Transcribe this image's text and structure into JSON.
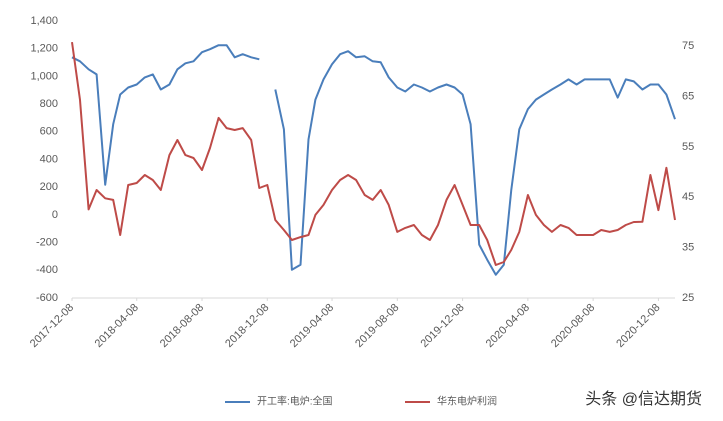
{
  "chart_data": {
    "type": "line",
    "x": [
      "2017-12-08",
      "2017-12-23",
      "2018-01-08",
      "2018-01-23",
      "2018-02-08",
      "2018-02-23",
      "2018-03-08",
      "2018-03-23",
      "2018-04-08",
      "2018-04-23",
      "2018-05-08",
      "2018-05-23",
      "2018-06-08",
      "2018-06-23",
      "2018-07-08",
      "2018-07-23",
      "2018-08-08",
      "2018-08-23",
      "2018-09-08",
      "2018-09-23",
      "2018-10-08",
      "2018-10-23",
      "2018-11-08",
      "2018-11-23",
      "2018-12-08",
      "2018-12-23",
      "2019-01-08",
      "2019-01-23",
      "2019-02-08",
      "2019-02-23",
      "2019-03-08",
      "2019-03-23",
      "2019-04-08",
      "2019-04-23",
      "2019-05-08",
      "2019-05-23",
      "2019-06-08",
      "2019-06-23",
      "2019-07-08",
      "2019-07-23",
      "2019-08-08",
      "2019-08-23",
      "2019-09-08",
      "2019-09-23",
      "2019-10-08",
      "2019-10-23",
      "2019-11-08",
      "2019-11-23",
      "2019-12-08",
      "2019-12-23",
      "2020-01-08",
      "2020-01-23",
      "2020-02-08",
      "2020-02-23",
      "2020-03-08",
      "2020-03-23",
      "2020-04-08",
      "2020-04-23",
      "2020-05-08",
      "2020-05-23",
      "2020-06-08",
      "2020-06-23",
      "2020-07-08",
      "2020-07-23",
      "2020-08-08",
      "2020-08-23",
      "2020-09-08",
      "2020-09-23",
      "2020-10-08",
      "2020-10-23",
      "2020-11-08",
      "2020-11-23",
      "2020-12-08",
      "2020-12-23",
      "2021-01-08"
    ],
    "series": [
      {
        "name": "开工率:电炉:全国",
        "color": "#4a7ebb",
        "axis": "y2",
        "values": [
          72.8,
          72.0,
          70.4,
          69.4,
          47.5,
          59.5,
          65.4,
          66.8,
          67.4,
          68.8,
          69.4,
          66.4,
          67.4,
          70.4,
          71.6,
          72.0,
          73.8,
          74.4,
          75.2,
          75.2,
          72.8,
          73.4,
          72.8,
          72.4,
          null,
          66.4,
          58.5,
          30.6,
          31.6,
          56.5,
          64.4,
          68.4,
          71.4,
          73.4,
          74.0,
          72.8,
          73.0,
          72.0,
          71.8,
          68.8,
          66.8,
          66.0,
          67.4,
          66.8,
          66.0,
          66.8,
          67.4,
          66.8,
          65.4,
          59.5,
          35.6,
          32.6,
          29.6,
          31.6,
          46.5,
          58.5,
          62.5,
          64.4,
          65.4,
          66.4,
          67.4,
          68.4,
          67.4,
          68.4,
          68.4,
          68.4,
          68.4,
          64.8,
          68.4,
          68.0,
          66.4,
          67.4,
          67.4,
          65.4,
          60.5
        ]
      },
      {
        "name": "华东电炉利润",
        "color": "#be4b48",
        "values": [
          1248,
          830,
          40,
          180,
          120,
          108,
          -145,
          216,
          230,
          288,
          252,
          180,
          432,
          541,
          432,
          411,
          324,
          483,
          700,
          627,
          613,
          627,
          541,
          194,
          216,
          -37,
          -109,
          -181,
          -160,
          -145,
          0,
          72,
          180,
          252,
          288,
          252,
          144,
          108,
          180,
          72,
          -123,
          -94,
          -73,
          -145,
          -181,
          -73,
          108,
          216,
          72,
          -73,
          -73,
          -181,
          -362,
          -340,
          -253,
          -123,
          144,
          0,
          -73,
          -123,
          -73,
          -94,
          -145,
          -145,
          -145,
          -109,
          -123,
          -109,
          -73,
          -51,
          -50,
          288,
          35,
          340,
          -37
        ]
      }
    ],
    "xlim": [
      "2017-12-08",
      "2021-01-08"
    ],
    "xticks": [
      "2017-12-08",
      "2018-04-08",
      "2018-08-08",
      "2018-12-08",
      "2019-04-08",
      "2019-08-08",
      "2019-12-08",
      "2020-04-08",
      "2020-08-08",
      "2020-12-08"
    ],
    "ylim": [
      -600,
      1400
    ],
    "yticks": [
      -600,
      -400,
      -200,
      0,
      200,
      400,
      600,
      800,
      {
        "value": 1000,
        "label": "1,000"
      },
      {
        "value": 1200,
        "label": "1,200"
      },
      {
        "value": 1400,
        "label": "1,400"
      }
    ],
    "y2lim": [
      25,
      80
    ],
    "y2ticks": [
      25,
      35,
      45,
      55,
      65,
      75
    ],
    "legend": "bottom",
    "watermark": "头条 @信达期货"
  }
}
